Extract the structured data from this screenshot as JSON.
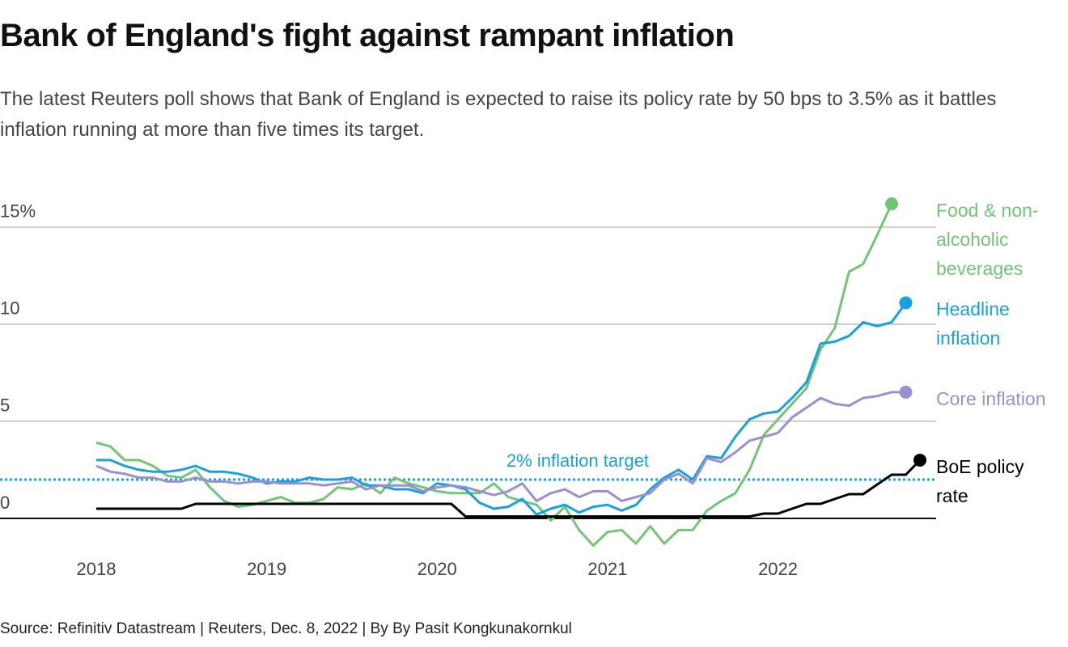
{
  "chart_data": {
    "type": "line",
    "title": "Bank of England's fight against rampant inflation",
    "subtitle": "The latest Reuters poll shows that Bank of England is expected to raise its policy rate by 50 bps to 3.5% as it battles inflation running at more than five times its target.",
    "source": "Source: Refinitiv Datastream | Reuters, Dec. 8, 2022 | By By Pasit Kongkunakornkul",
    "x": [
      2018,
      2018.083,
      2018.167,
      2018.25,
      2018.333,
      2018.417,
      2018.5,
      2018.583,
      2018.667,
      2018.75,
      2018.833,
      2018.917,
      2019,
      2019.083,
      2019.167,
      2019.25,
      2019.333,
      2019.417,
      2019.5,
      2019.583,
      2019.667,
      2019.75,
      2019.833,
      2019.917,
      2020,
      2020.083,
      2020.167,
      2020.25,
      2020.333,
      2020.417,
      2020.5,
      2020.583,
      2020.667,
      2020.75,
      2020.833,
      2020.917,
      2021,
      2021.083,
      2021.167,
      2021.25,
      2021.333,
      2021.417,
      2021.5,
      2021.583,
      2021.667,
      2021.75,
      2021.833,
      2021.917,
      2022,
      2022.083,
      2022.167,
      2022.25,
      2022.333,
      2022.417,
      2022.5,
      2022.583,
      2022.667,
      2022.75,
      2022.833
    ],
    "xlim": [
      2018,
      2022.833
    ],
    "xticks": [
      2018,
      2019,
      2020,
      2021,
      2022
    ],
    "ylim": [
      -2.5,
      16.7
    ],
    "yticks": [
      0,
      5,
      10,
      {
        "value": 15,
        "label": "15%"
      }
    ],
    "grid": true,
    "target_line": {
      "value": 2,
      "label": "2% inflation target",
      "color": "#1a9fe0"
    },
    "series": [
      {
        "name": "Food & non-alcoholic beverages",
        "color": "#74c476",
        "values": [
          3.9,
          3.7,
          3.0,
          3.0,
          2.7,
          2.2,
          2.1,
          2.5,
          1.6,
          0.9,
          0.6,
          0.7,
          0.9,
          1.1,
          0.8,
          0.8,
          1.0,
          1.6,
          1.5,
          1.8,
          1.3,
          2.1,
          1.8,
          1.6,
          1.4,
          1.3,
          1.3,
          1.3,
          1.8,
          1.1,
          0.9,
          0.7,
          -0.1,
          0.6,
          -0.6,
          -1.4,
          -0.7,
          -0.6,
          -1.3,
          -0.4,
          -1.3,
          -0.6,
          -0.6,
          0.4,
          0.9,
          1.3,
          2.5,
          4.3,
          5.1,
          5.9,
          6.7,
          8.7,
          9.8,
          12.7,
          13.1,
          14.6,
          16.2,
          null,
          null
        ]
      },
      {
        "name": "Headline inflation",
        "color": "#1a9fe0",
        "values": [
          3.0,
          3.0,
          2.7,
          2.5,
          2.4,
          2.4,
          2.5,
          2.7,
          2.4,
          2.4,
          2.3,
          2.1,
          1.8,
          1.9,
          1.9,
          2.1,
          2.0,
          2.0,
          2.1,
          1.7,
          1.7,
          1.5,
          1.5,
          1.3,
          1.8,
          1.7,
          1.5,
          0.8,
          0.5,
          0.6,
          1.0,
          0.2,
          0.5,
          0.7,
          0.3,
          0.6,
          0.7,
          0.4,
          0.7,
          1.5,
          2.1,
          2.5,
          2.0,
          3.2,
          3.1,
          4.2,
          5.1,
          5.4,
          5.5,
          6.2,
          7.0,
          9.0,
          9.1,
          9.4,
          10.1,
          9.9,
          10.1,
          11.1,
          null
        ]
      },
      {
        "name": "Core inflation",
        "color": "#9b8fcf",
        "values": [
          2.7,
          2.4,
          2.3,
          2.1,
          2.1,
          1.9,
          1.9,
          2.1,
          1.9,
          1.9,
          1.8,
          1.9,
          1.9,
          1.8,
          1.8,
          1.8,
          1.7,
          1.8,
          1.9,
          1.5,
          1.7,
          1.7,
          1.7,
          1.4,
          1.6,
          1.7,
          1.6,
          1.4,
          1.2,
          1.4,
          1.8,
          0.9,
          1.3,
          1.5,
          1.1,
          1.4,
          1.4,
          0.9,
          1.1,
          1.3,
          2.0,
          2.3,
          1.8,
          3.1,
          2.9,
          3.4,
          4.0,
          4.2,
          4.4,
          5.2,
          5.7,
          6.2,
          5.9,
          5.8,
          6.2,
          6.3,
          6.5,
          6.5,
          null
        ]
      },
      {
        "name": "BoE policy rate",
        "color": "#000000",
        "values": [
          0.5,
          0.5,
          0.5,
          0.5,
          0.5,
          0.5,
          0.5,
          0.75,
          0.75,
          0.75,
          0.75,
          0.75,
          0.75,
          0.75,
          0.75,
          0.75,
          0.75,
          0.75,
          0.75,
          0.75,
          0.75,
          0.75,
          0.75,
          0.75,
          0.75,
          0.75,
          0.1,
          0.1,
          0.1,
          0.1,
          0.1,
          0.1,
          0.1,
          0.1,
          0.1,
          0.1,
          0.1,
          0.1,
          0.1,
          0.1,
          0.1,
          0.1,
          0.1,
          0.1,
          0.1,
          0.1,
          0.1,
          0.25,
          0.25,
          0.5,
          0.75,
          0.75,
          1.0,
          1.25,
          1.25,
          1.75,
          2.25,
          2.25,
          3.0
        ]
      }
    ]
  }
}
